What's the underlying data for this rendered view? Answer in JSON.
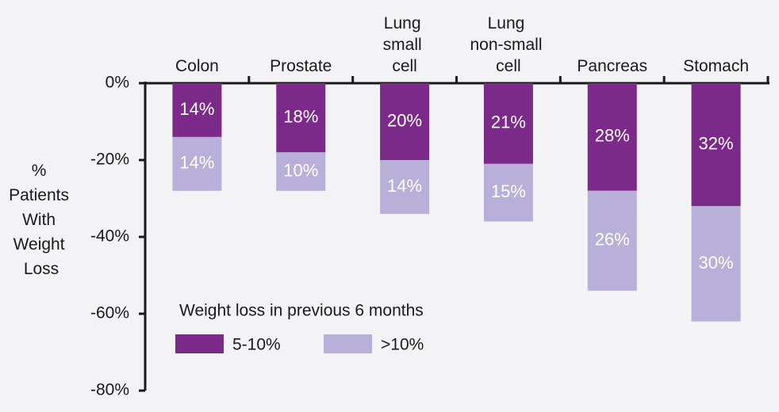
{
  "chart_data": {
    "type": "stacked_bar",
    "y_label": "%\nPatients\nWith\nWeight\nLoss",
    "categories": [
      "Colon",
      "Prostate",
      "Lung\nsmall\ncell",
      "Lung\nnon-small\ncell",
      "Pancreas",
      "Stomach"
    ],
    "series": [
      {
        "name": "5-10%",
        "color": "#7b2a8a",
        "values": [
          -14,
          -18,
          -20,
          -21,
          -28,
          -32
        ],
        "value_labels": [
          "14%",
          "18%",
          "20%",
          "21%",
          "28%",
          "32%"
        ]
      },
      {
        "name": ">10%",
        "color": "#b8b0d8",
        "values": [
          -14,
          -10,
          -14,
          -15,
          -26,
          -30
        ],
        "value_labels": [
          "14%",
          "10%",
          "14%",
          "15%",
          "26%",
          "30%"
        ]
      }
    ],
    "legend_title": "Weight loss in previous 6 months",
    "legend": "bottom-left",
    "ylim": [
      -80,
      0
    ],
    "yticks": [
      {
        "value": 0,
        "label": "0%"
      },
      {
        "value": -20,
        "label": "-20%"
      },
      {
        "value": -40,
        "label": "-40%"
      },
      {
        "value": -60,
        "label": "-60%"
      },
      {
        "value": -80,
        "label": "-80%"
      }
    ]
  }
}
